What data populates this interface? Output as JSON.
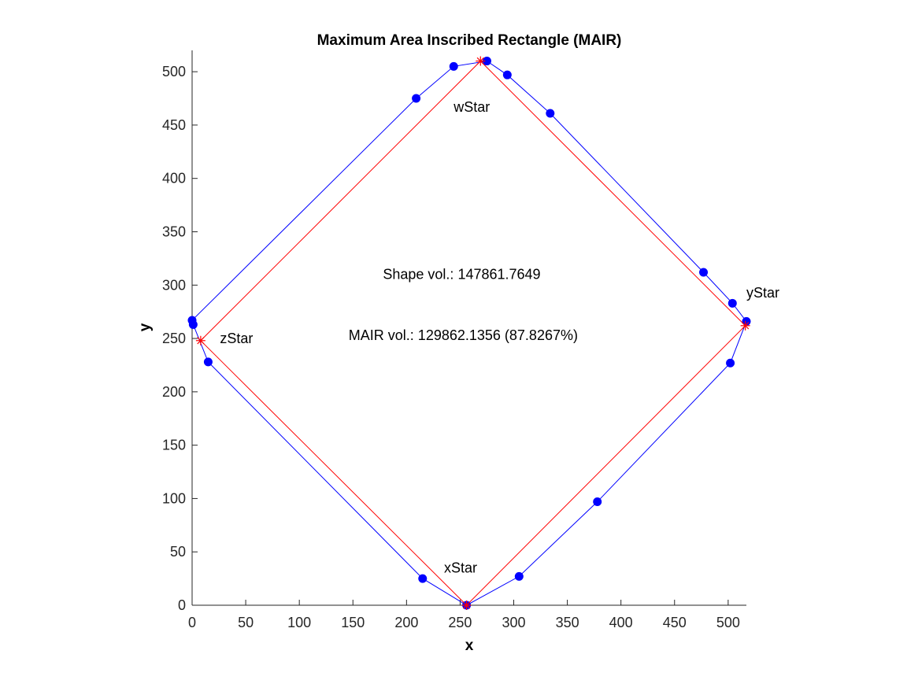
{
  "chart_data": {
    "type": "scatter",
    "title": "Maximum Area Inscribed Rectangle (MAIR)",
    "xlabel": "x",
    "ylabel": "y",
    "xlim": [
      0,
      517
    ],
    "ylim": [
      0,
      520
    ],
    "grid": false,
    "x_ticks": [
      0,
      50,
      100,
      150,
      200,
      250,
      300,
      350,
      400,
      450,
      500
    ],
    "y_ticks": [
      0,
      50,
      100,
      150,
      200,
      250,
      300,
      350,
      400,
      450,
      500
    ],
    "series": [
      {
        "color": "#0000ff",
        "marker": "filled-circle",
        "closed": true,
        "points": [
          [
            256,
            0
          ],
          [
            305,
            27
          ],
          [
            378,
            97
          ],
          [
            502,
            227
          ],
          [
            517,
            266
          ],
          [
            504,
            283
          ],
          [
            477,
            312
          ],
          [
            334,
            461
          ],
          [
            294,
            497
          ],
          [
            275,
            510
          ],
          [
            244,
            505
          ],
          [
            209,
            475
          ],
          [
            0,
            267
          ],
          [
            1,
            263
          ],
          [
            15,
            228
          ],
          [
            215,
            25
          ]
        ]
      },
      {
        "color": "#ff0000",
        "marker": "asterisk",
        "closed": true,
        "points": [
          [
            256,
            0
          ],
          [
            516,
            262
          ],
          [
            269,
            510
          ],
          [
            8,
            248
          ]
        ]
      }
    ],
    "annotations": [
      {
        "text": "xStar",
        "x": 235,
        "y": 35
      },
      {
        "text": "yStar",
        "x": 517,
        "y": 293
      },
      {
        "text": "wStar",
        "x": 244,
        "y": 467
      },
      {
        "text": "zStar",
        "x": 26,
        "y": 250
      },
      {
        "text": "Shape vol.: 147861.7649",
        "x": 178,
        "y": 310
      },
      {
        "text": "MAIR vol.: 129862.1356 (87.8267%)",
        "x": 146,
        "y": 253
      }
    ],
    "colors": {
      "shape": "#0000ff",
      "mair": "#ff0000",
      "axes": "#262626"
    }
  }
}
